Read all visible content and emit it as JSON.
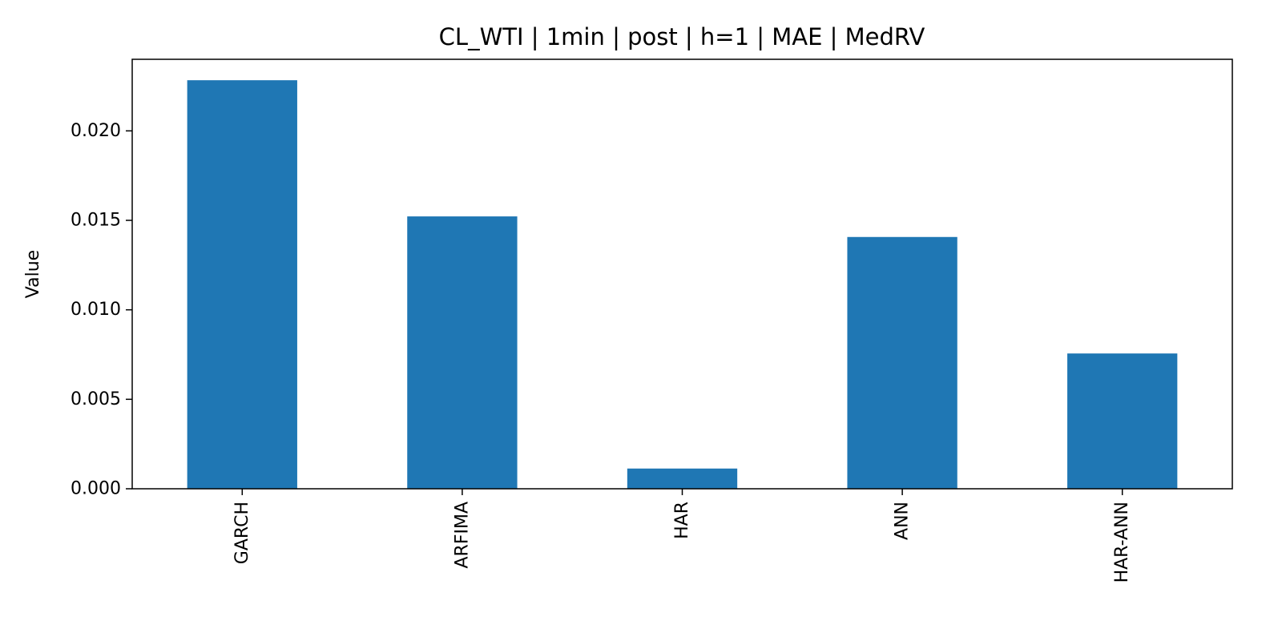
{
  "chart_data": {
    "type": "bar",
    "title": "CL_WTI | 1min | post | h=1 | MAE | MedRV",
    "xlabel": "",
    "ylabel": "Value",
    "categories": [
      "GARCH",
      "ARFIMA",
      "HAR",
      "ANN",
      "HAR-ANN"
    ],
    "values": [
      0.02283,
      0.01522,
      0.00113,
      0.01407,
      0.00756
    ],
    "ylim": [
      0,
      0.024
    ],
    "yticks": [
      "0.000",
      "0.005",
      "0.010",
      "0.015",
      "0.020"
    ],
    "grid": false,
    "bar_color": "#1f77b4"
  }
}
